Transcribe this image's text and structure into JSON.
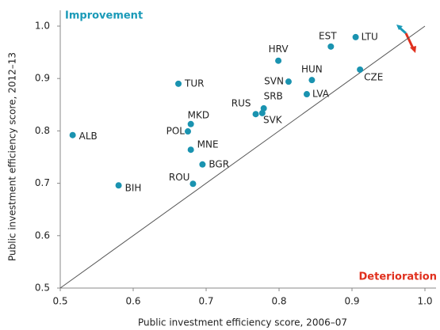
{
  "chart_data": {
    "type": "scatter",
    "x_label": "Public investment efficiency score, 2006–07",
    "y_label": "Public investment efficiency score, 2012–13",
    "labels": [
      "ALB",
      "BIH",
      "TUR",
      "MKD",
      "POL",
      "MNE",
      "BGR",
      "ROU",
      "RUS",
      "SRB",
      "SVK",
      "HRV",
      "SVN",
      "HUN",
      "LVA",
      "EST",
      "LTU",
      "CZE"
    ],
    "x": [
      0.517,
      0.58,
      0.662,
      0.679,
      0.675,
      0.679,
      0.695,
      0.682,
      0.768,
      0.779,
      0.777,
      0.799,
      0.813,
      0.845,
      0.838,
      0.871,
      0.905,
      0.911
    ],
    "values": [
      0.792,
      0.696,
      0.89,
      0.813,
      0.799,
      0.764,
      0.736,
      0.699,
      0.832,
      0.843,
      0.834,
      0.934,
      0.894,
      0.897,
      0.87,
      0.961,
      0.979,
      0.917
    ],
    "color": "#1a93b0",
    "xlim": [
      0.5,
      1
    ],
    "ylim": [
      0.5,
      1
    ],
    "xticks": [
      0.5,
      0.6,
      0.7,
      0.8,
      0.9,
      {
        "value": 1,
        "label": "1.0"
      }
    ],
    "yticks": [
      0.5,
      0.6,
      0.7,
      0.8,
      0.9,
      {
        "value": 1,
        "label": "1.0"
      }
    ],
    "annotations": [
      "Improvement",
      "Deterioration"
    ]
  }
}
